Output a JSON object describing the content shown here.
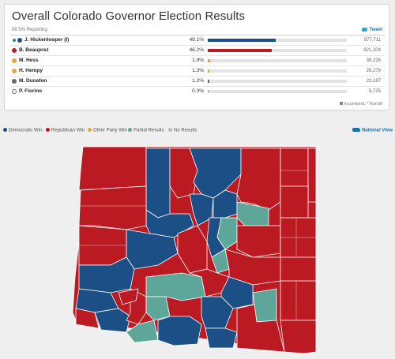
{
  "panel": {
    "title": "Overall Colorado Governor Election Results",
    "reporting": "98.5% Reporting",
    "tweet_label": "Tweet"
  },
  "candidates": [
    {
      "name": "J. Hickenlooper (I)",
      "pct": "49.1%",
      "votes": "977,711",
      "party": "dem",
      "winner": true,
      "share": 0.491
    },
    {
      "name": "B. Beauprez",
      "pct": "46.2%",
      "votes": "921,204",
      "party": "rep",
      "winner": false,
      "share": 0.462
    },
    {
      "name": "M. Hess",
      "pct": "1.9%",
      "votes": "38,226",
      "party": "other",
      "winner": false,
      "share": 0.019
    },
    {
      "name": "H. Hempy",
      "pct": "1.3%",
      "votes": "26,279",
      "party": "other",
      "winner": false,
      "share": 0.013
    },
    {
      "name": "M. Dunafon",
      "pct": "1.2%",
      "votes": "23,187",
      "party": "ind",
      "winner": false,
      "share": 0.012
    },
    {
      "name": "P. Fiorino",
      "pct": "0.3%",
      "votes": "5,725",
      "party": "ind2",
      "winner": false,
      "share": 0.003
    }
  ],
  "footnote": "Incumbent, * Runoff",
  "legend": {
    "dem": "Democratic Win",
    "rep": "Republican Win",
    "other": "Other Party Win",
    "partial": "Partial Results",
    "none": "No Results"
  },
  "national_view": "National View",
  "colors": {
    "dem": "#1b4f86",
    "rep": "#bb1a23",
    "other": "#e8a33a",
    "partial": "#5fa69a",
    "none": "#b7b7b7",
    "ind": "#666666",
    "ind2": "#999999"
  }
}
